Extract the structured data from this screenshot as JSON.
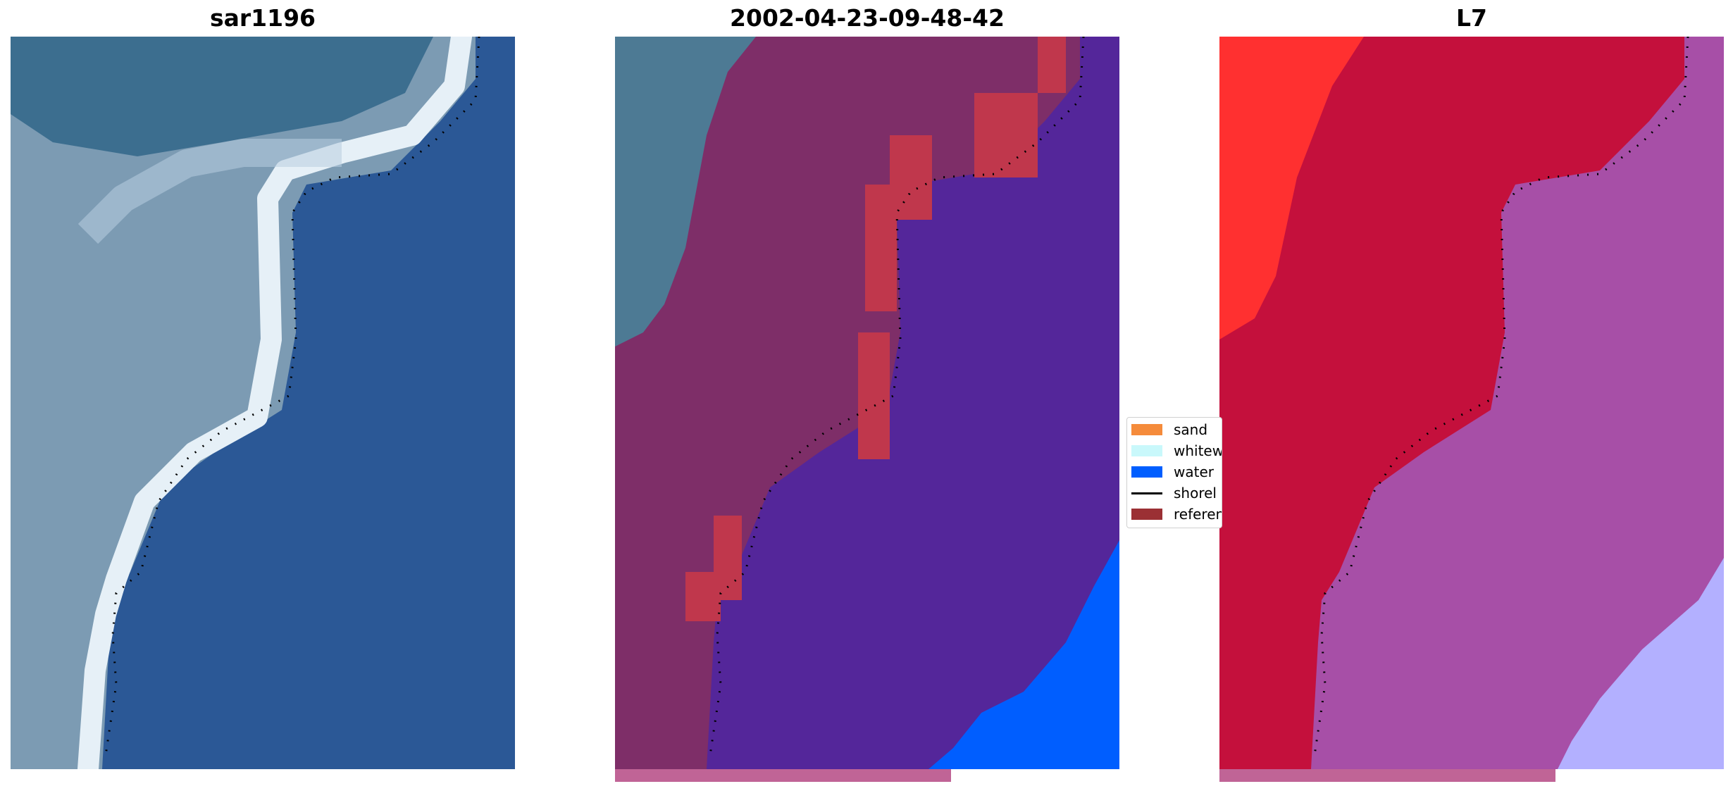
{
  "panels": [
    {
      "title": "sar1196"
    },
    {
      "title": "2002-04-23-09-48-42"
    },
    {
      "title": "L7"
    }
  ],
  "legend": {
    "items": [
      {
        "label": "sand",
        "color": "#f58b3b",
        "kind": "patch"
      },
      {
        "label": "whitew",
        "color": "#c9f8fb",
        "kind": "patch"
      },
      {
        "label": "water",
        "color": "#005eff",
        "kind": "patch"
      },
      {
        "label": "shorel",
        "color": "#000000",
        "kind": "line"
      },
      {
        "label": "referen",
        "color": "#9b3034",
        "kind": "patch"
      }
    ]
  },
  "colors": {
    "rgb_sea": "#2b5896",
    "rgb_land": "#7c9bb3",
    "rgb_surf": "#e6f0f7",
    "class_land": "#7e2e68",
    "class_water_sand": "#54269a",
    "class_water": "#005eff",
    "class_ref": "#c0374c",
    "index_land": "#c4103c",
    "index_land_bright": "#ff3030",
    "index_sea": "#a74fa7",
    "index_sea_light": "#b3b0ff",
    "strip": "#c06496",
    "shoreline": "#000000"
  }
}
